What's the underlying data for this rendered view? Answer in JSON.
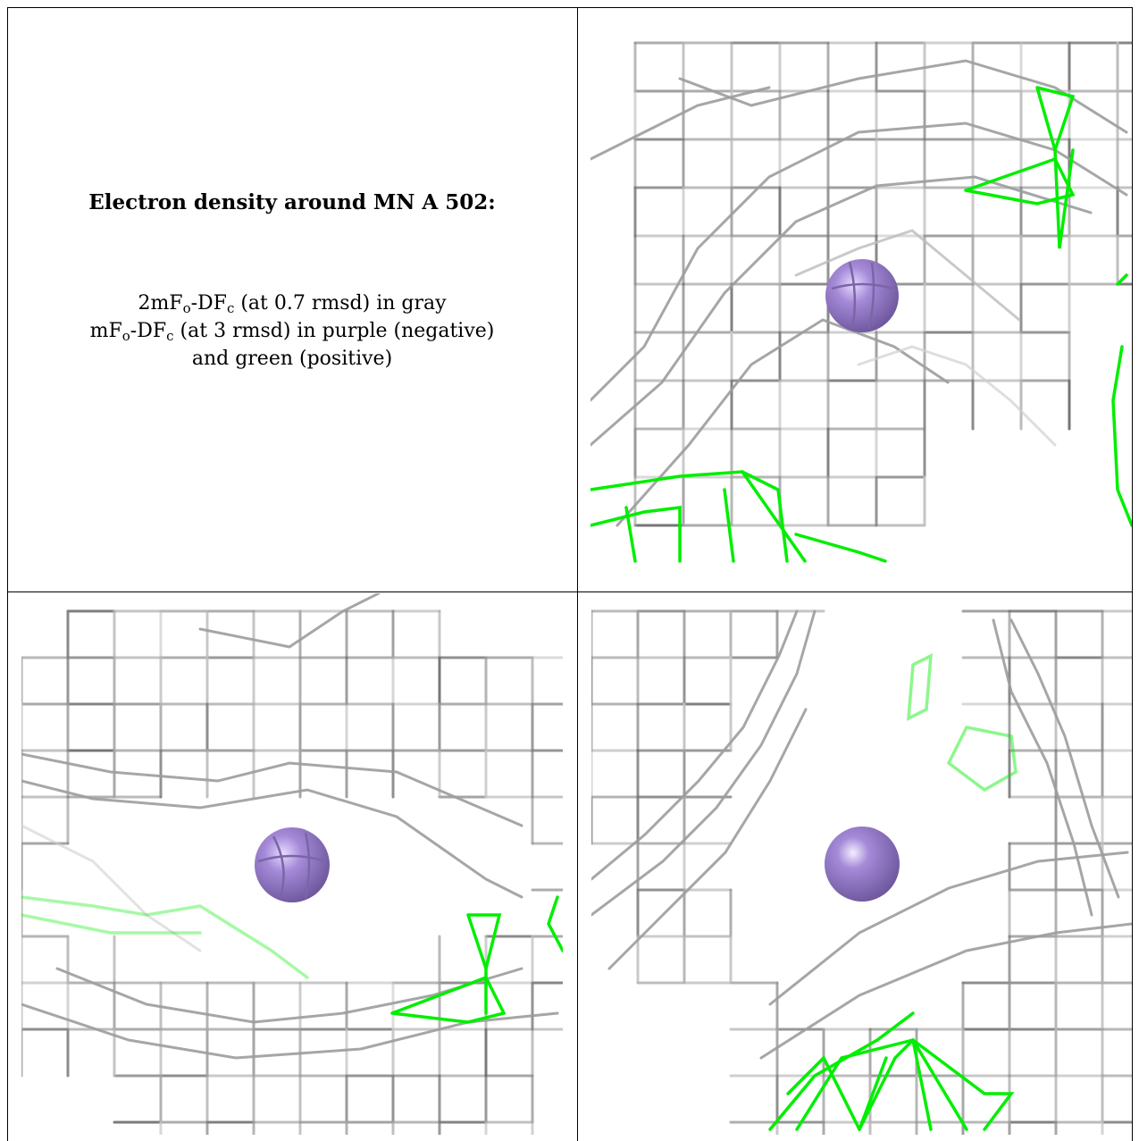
{
  "caption": {
    "title": "Electron density around MN A 502:",
    "line1_pre": "2mF",
    "line1_sub1": "o",
    "line1_mid": "-DF",
    "line1_sub2": "c",
    "line1_post": " (at 0.7 rmsd) in gray",
    "line2_pre": "mF",
    "line2_sub1": "o",
    "line2_mid": "-DF",
    "line2_sub2": "c",
    "line2_post": " (at 3 rmsd) in purple (negative)",
    "line3": "and green (positive)"
  },
  "colors": {
    "two_fo_fc_mesh": "#a8a8a8",
    "fo_fc_positive": "#00ee00",
    "fo_fc_negative": "#9a7fd0",
    "manganese_sphere": "#9a7fd0"
  },
  "panels": [
    {
      "view": "top-right"
    },
    {
      "view": "bottom-left"
    },
    {
      "view": "bottom-right"
    }
  ]
}
